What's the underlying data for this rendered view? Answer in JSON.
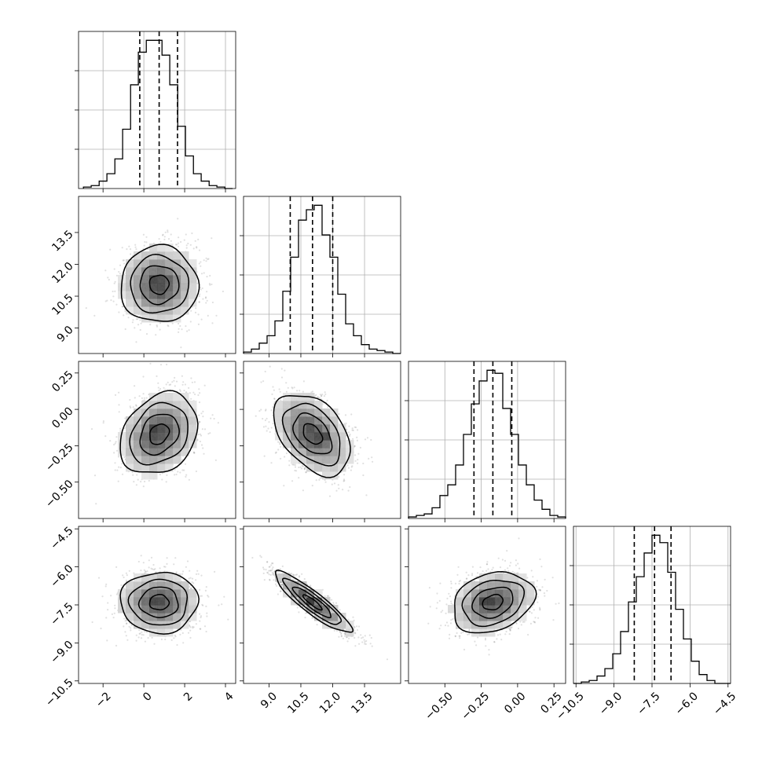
{
  "chart_data": {
    "type": "corner",
    "grid": true,
    "parameters": [
      {
        "index": 0,
        "range": [
          -3.2,
          4.5
        ],
        "ticks": [
          -2,
          0,
          2,
          4
        ],
        "tick_labels": [
          "−2",
          "0",
          "2",
          "4"
        ],
        "quantiles": [
          -0.2,
          0.75,
          1.65
        ],
        "hist_bins": [
          -2.96,
          -2.58,
          -2.19,
          -1.81,
          -1.42,
          -1.04,
          -0.65,
          -0.27,
          0.12,
          0.5,
          0.89,
          1.27,
          1.66,
          2.04,
          2.43,
          2.81,
          3.2,
          3.58,
          3.97,
          4.35
        ],
        "hist_counts": [
          1,
          2,
          5,
          10,
          20,
          40,
          70,
          92,
          100,
          100,
          90,
          70,
          42,
          22,
          10,
          5,
          2,
          1,
          0
        ]
      },
      {
        "index": 1,
        "range": [
          7.8,
          15.2
        ],
        "ticks": [
          9.0,
          10.5,
          12.0,
          13.5
        ],
        "tick_labels": [
          "9.0",
          "10.5",
          "12.0",
          "13.5"
        ],
        "quantiles": [
          10.0,
          11.05,
          12.0
        ],
        "hist_bins": [
          7.8,
          8.17,
          8.54,
          8.91,
          9.28,
          9.65,
          10.02,
          10.39,
          10.76,
          11.13,
          11.5,
          11.87,
          12.24,
          12.61,
          12.98,
          13.35,
          13.72,
          14.09,
          14.46,
          14.83,
          15.2
        ],
        "hist_counts": [
          1,
          3,
          7,
          12,
          22,
          42,
          65,
          90,
          97,
          100,
          80,
          65,
          40,
          20,
          12,
          6,
          3,
          2,
          1,
          0
        ]
      },
      {
        "index": 2,
        "range": [
          -0.75,
          0.33
        ],
        "ticks": [
          -0.5,
          -0.25,
          0.0,
          0.25
        ],
        "tick_labels": [
          "−0.50",
          "−0.25",
          "0.00",
          "0.25"
        ],
        "quantiles": [
          -0.3,
          -0.17,
          -0.04
        ],
        "hist_bins": [
          -0.75,
          -0.696,
          -0.642,
          -0.588,
          -0.534,
          -0.48,
          -0.426,
          -0.372,
          -0.318,
          -0.264,
          -0.21,
          -0.156,
          -0.102,
          -0.048,
          0.006,
          0.06,
          0.114,
          0.168,
          0.222,
          0.276,
          0.33
        ],
        "hist_counts": [
          1,
          2,
          3,
          7,
          15,
          22,
          35,
          55,
          75,
          90,
          97,
          95,
          72,
          55,
          35,
          22,
          12,
          6,
          2,
          1
        ]
      },
      {
        "index": 3,
        "range": [
          -10.6,
          -4.4
        ],
        "ticks": [
          -10.5,
          -9.0,
          -7.5,
          -6.0,
          -4.5
        ],
        "tick_labels": [
          "−10.5",
          "−9.0",
          "−7.5",
          "−6.0",
          "−4.5"
        ],
        "quantiles": [
          -8.2,
          -7.4,
          -6.75
        ],
        "hist_bins": [
          -10.6,
          -10.29,
          -9.98,
          -9.67,
          -9.36,
          -9.05,
          -8.74,
          -8.43,
          -8.12,
          -7.81,
          -7.5,
          -7.19,
          -6.88,
          -6.57,
          -6.26,
          -5.95,
          -5.64,
          -5.33,
          -5.02,
          -4.71,
          -4.4
        ],
        "hist_counts": [
          0,
          1,
          2,
          5,
          10,
          20,
          35,
          55,
          72,
          88,
          100,
          95,
          75,
          50,
          30,
          15,
          6,
          2,
          0,
          0
        ]
      }
    ],
    "pairs": [
      {
        "x": 0,
        "y": 1,
        "mean": [
          0.75,
          11.05
        ],
        "sd": [
          0.95,
          0.9
        ],
        "corr": 0.0,
        "peak_bin": [
          0.4,
          11.3
        ]
      },
      {
        "x": 0,
        "y": 2,
        "mean": [
          0.75,
          -0.17
        ],
        "sd": [
          0.95,
          0.14
        ],
        "corr": 0.25,
        "peak_bin": [
          0.45,
          -0.13
        ]
      },
      {
        "x": 1,
        "y": 2,
        "mean": [
          11.05,
          -0.17
        ],
        "sd": [
          0.9,
          0.14
        ],
        "corr": -0.42,
        "peak_bin": [
          11.4,
          -0.18
        ]
      },
      {
        "x": 0,
        "y": 3,
        "mean": [
          0.75,
          -7.4
        ],
        "sd": [
          0.95,
          0.6
        ],
        "corr": 0.0,
        "peak_bin": [
          0.7,
          -7.4
        ]
      },
      {
        "x": 1,
        "y": 3,
        "mean": [
          11.05,
          -7.4
        ],
        "sd": [
          0.9,
          0.6
        ],
        "corr": -0.9,
        "peak_bin": [
          11.0,
          -7.4
        ]
      },
      {
        "x": 2,
        "y": 3,
        "mean": [
          -0.17,
          -7.4
        ],
        "sd": [
          0.14,
          0.6
        ],
        "corr": 0.25,
        "peak_bin": [
          -0.2,
          -7.4
        ]
      }
    ],
    "contour_levels_sigma": [
      0.5,
      1.0,
      1.5,
      2.0
    ]
  }
}
